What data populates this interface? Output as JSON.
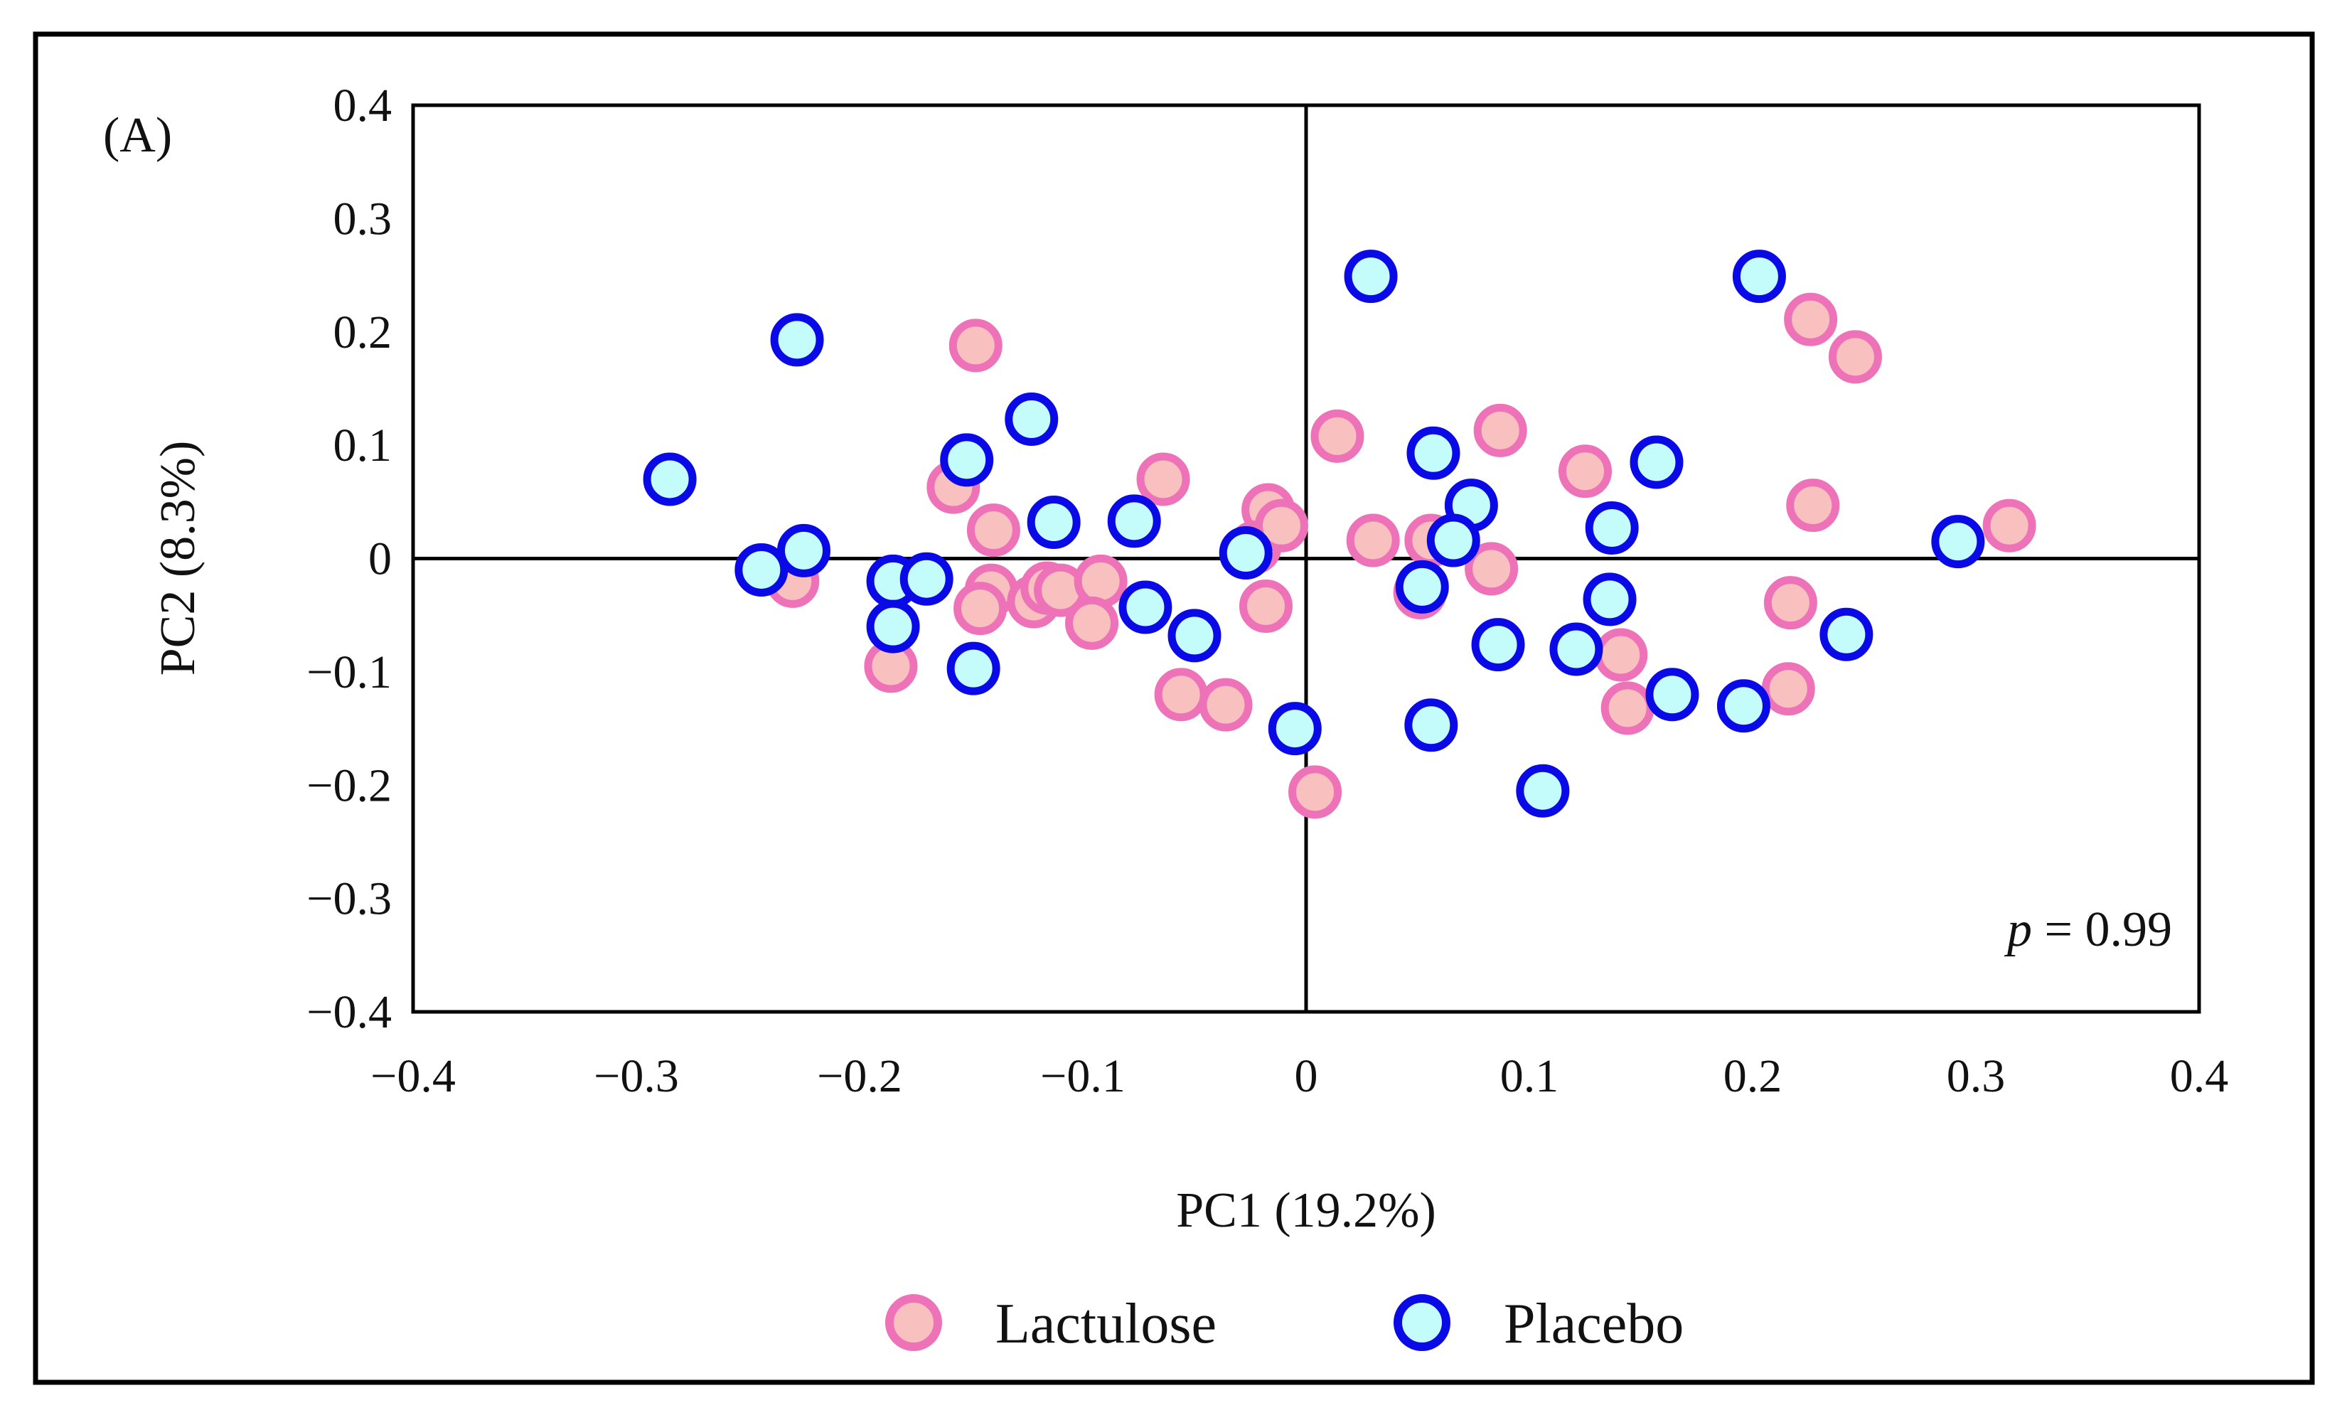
{
  "chart_data": {
    "type": "scatter",
    "panel_label": "(A)",
    "xlabel": "PC1 (19.2%)",
    "ylabel": "PC2 (8.3%)",
    "xlim": [
      -0.4,
      0.4
    ],
    "ylim": [
      -0.4,
      0.4
    ],
    "xticks": [
      -0.4,
      -0.3,
      -0.2,
      -0.1,
      0,
      0.1,
      0.2,
      0.3,
      0.4
    ],
    "yticks": [
      -0.4,
      -0.3,
      -0.2,
      -0.1,
      0,
      0.1,
      0.2,
      0.3,
      0.4
    ],
    "xtick_labels": [
      "−0.4",
      "−0.3",
      "−0.2",
      "−0.1",
      "0",
      "0.1",
      "0.2",
      "0.3",
      "0.4"
    ],
    "ytick_labels": [
      "−0.4",
      "−0.3",
      "−0.2",
      "−0.1",
      "0",
      "0.1",
      "0.2",
      "0.3",
      "0.4"
    ],
    "annotation": {
      "p_symbol": "p",
      "p_text": " = 0.99"
    },
    "legend_position": "bottom",
    "series": [
      {
        "name": "Lactulose",
        "fill": "#f9c0c0",
        "stroke": "#ee72b8",
        "x": [
          -0.148,
          -0.158,
          -0.14,
          -0.064,
          -0.23,
          -0.141,
          -0.146,
          -0.122,
          -0.116,
          -0.11,
          -0.092,
          -0.096,
          -0.186,
          -0.056,
          -0.036,
          -0.017,
          -0.023,
          -0.011,
          -0.018,
          0.014,
          0.03,
          0.056,
          0.051,
          0.087,
          0.083,
          0.125,
          0.141,
          0.144,
          0.226,
          0.246,
          0.227,
          0.217,
          0.216,
          0.315,
          0.004
        ],
        "y": [
          0.188,
          0.063,
          0.025,
          0.07,
          -0.02,
          -0.028,
          -0.044,
          -0.038,
          -0.026,
          -0.028,
          -0.02,
          -0.057,
          -0.095,
          -0.12,
          -0.129,
          0.043,
          0.01,
          0.029,
          -0.042,
          0.108,
          0.016,
          0.016,
          -0.03,
          0.113,
          -0.009,
          0.077,
          -0.085,
          -0.132,
          0.211,
          0.178,
          0.047,
          -0.039,
          -0.115,
          0.029,
          -0.206
        ]
      },
      {
        "name": "Placebo",
        "fill": "#c4fbfb",
        "stroke": "#0a0ae6",
        "x": [
          -0.285,
          -0.228,
          -0.244,
          -0.225,
          -0.185,
          -0.185,
          -0.17,
          -0.152,
          -0.123,
          -0.113,
          -0.077,
          -0.149,
          -0.072,
          -0.05,
          -0.027,
          0.029,
          0.057,
          0.074,
          0.052,
          0.066,
          0.086,
          0.056,
          0.106,
          0.121,
          0.137,
          0.136,
          0.157,
          0.164,
          0.196,
          0.203,
          0.242,
          0.292,
          -0.005
        ],
        "y": [
          0.07,
          0.193,
          -0.01,
          0.007,
          -0.02,
          -0.06,
          -0.018,
          0.087,
          0.123,
          0.032,
          0.033,
          -0.097,
          -0.043,
          -0.068,
          0.005,
          0.249,
          0.093,
          0.047,
          -0.025,
          0.016,
          -0.076,
          -0.147,
          -0.205,
          -0.08,
          0.027,
          -0.036,
          0.085,
          -0.12,
          -0.13,
          0.249,
          -0.067,
          0.015,
          -0.15
        ]
      }
    ]
  }
}
